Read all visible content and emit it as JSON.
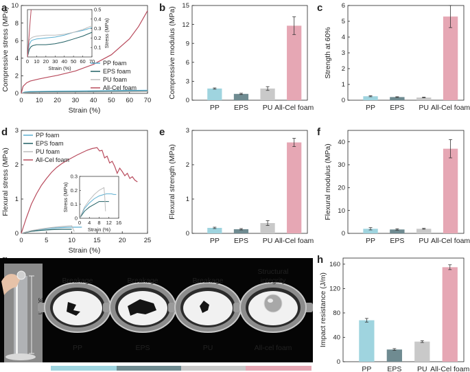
{
  "labels": {
    "a": "a",
    "b": "b",
    "c": "c",
    "d": "d",
    "e": "e",
    "f": "f",
    "g": "g",
    "h": "h"
  },
  "colors": {
    "PP": "#9fd4df",
    "EPS": "#6f8b91",
    "PU": "#c9c9c9",
    "Cel": "#e6a7b4",
    "PP_line": "#5aaed0",
    "EPS_line": "#1f5f63",
    "PU_line": "#bcbcbc",
    "Cel_line": "#b84a5c"
  },
  "chart_data": [
    {
      "id": "a",
      "type": "line",
      "xlabel": "Strain (%)",
      "ylabel": "Compressive stress (MPa)",
      "xlim": [
        0,
        70
      ],
      "ylim": [
        0,
        10
      ],
      "xticks": [
        0,
        10,
        20,
        30,
        40,
        50,
        60,
        70
      ],
      "yticks": [
        0,
        2,
        4,
        6,
        8,
        10
      ],
      "legend": [
        "PP foam",
        "EPS foam",
        "PU foam",
        "All-Cel foam"
      ],
      "series": [
        {
          "name": "PP foam",
          "x": [
            0,
            2,
            5,
            10,
            20,
            40,
            70
          ],
          "y": [
            0,
            0.15,
            0.2,
            0.22,
            0.24,
            0.28,
            0.35
          ]
        },
        {
          "name": "EPS foam",
          "x": [
            0,
            2,
            5,
            10,
            20,
            40,
            70
          ],
          "y": [
            0,
            0.1,
            0.13,
            0.15,
            0.17,
            0.2,
            0.25
          ]
        },
        {
          "name": "PU foam",
          "x": [
            0,
            2,
            5,
            10,
            20,
            40,
            70
          ],
          "y": [
            0,
            0.05,
            0.08,
            0.1,
            0.12,
            0.15,
            0.2
          ]
        },
        {
          "name": "All-Cel foam",
          "x": [
            0,
            1,
            3,
            5,
            8,
            10,
            15,
            20,
            30,
            40,
            50,
            60,
            65,
            70
          ],
          "y": [
            0,
            0.8,
            1.2,
            1.4,
            1.55,
            1.65,
            1.85,
            2.05,
            2.55,
            3.3,
            4.4,
            6.2,
            7.6,
            9.4
          ]
        }
      ],
      "inset": {
        "xlabel": "Strain (%)",
        "ylabel": "Stress (MPa)",
        "xlim": [
          0,
          70
        ],
        "ylim": [
          0,
          0.5
        ],
        "xticks": [
          0,
          10,
          20,
          30,
          40,
          50,
          60,
          70
        ],
        "yticks": [
          0.1,
          0.2,
          0.3,
          0.4,
          0.5
        ],
        "series": [
          {
            "name": "PP foam",
            "x": [
              0,
              2,
              4,
              6,
              10,
              20,
              30,
              40,
              50,
              60,
              70
            ],
            "y": [
              0,
              0.13,
              0.17,
              0.18,
              0.19,
              0.2,
              0.21,
              0.23,
              0.26,
              0.28,
              0.31
            ]
          },
          {
            "name": "EPS foam",
            "x": [
              0,
              2,
              4,
              6,
              10,
              20,
              30,
              40,
              50,
              60,
              70
            ],
            "y": [
              0,
              0.08,
              0.11,
              0.12,
              0.13,
              0.13,
              0.14,
              0.16,
              0.19,
              0.22,
              0.26
            ]
          },
          {
            "name": "PU foam",
            "x": [
              0,
              2,
              4,
              6,
              10,
              20,
              30,
              40,
              50,
              60,
              70
            ],
            "y": [
              0,
              0.18,
              0.2,
              0.21,
              0.22,
              0.23,
              0.23,
              0.24,
              0.26,
              0.29,
              0.33
            ]
          },
          {
            "name": "All-Cel foam",
            "x": [
              0,
              1,
              2,
              3,
              4
            ],
            "y": [
              0,
              0.12,
              0.25,
              0.38,
              0.5
            ]
          }
        ]
      }
    },
    {
      "id": "b",
      "type": "bar",
      "categories": [
        "PP",
        "EPS",
        "PU",
        "All-Cel foam"
      ],
      "values": [
        1.85,
        1.0,
        1.85,
        11.8
      ],
      "errors": [
        0.1,
        0.1,
        0.3,
        1.4
      ],
      "ylabel": "Compressive modulus (MPa)",
      "ylim": [
        0,
        15
      ],
      "yticks": [
        0,
        3,
        6,
        9,
        12,
        15
      ]
    },
    {
      "id": "c",
      "type": "bar",
      "categories": [
        "PP",
        "EPS",
        "PU",
        "All-Cel foam"
      ],
      "values": [
        0.25,
        0.2,
        0.17,
        5.3
      ],
      "errors": [
        0.03,
        0.02,
        0.02,
        0.7
      ],
      "ylabel": "Strength at 60%",
      "ylim": [
        0,
        6
      ],
      "yticks": [
        0,
        1,
        2,
        3,
        4,
        5,
        6
      ]
    },
    {
      "id": "d",
      "type": "line",
      "xlabel": "Strain (%)",
      "ylabel": "Flexural stress (MPa)",
      "xlim": [
        0,
        25
      ],
      "ylim": [
        0,
        3
      ],
      "xticks": [
        0,
        5,
        10,
        15,
        20,
        25
      ],
      "yticks": [
        0,
        1,
        2,
        3
      ],
      "legend": [
        "PP foam",
        "EPS foam",
        "PU foam",
        "All-Cel foam"
      ],
      "series": [
        {
          "name": "PP foam",
          "x": [
            0,
            2,
            4,
            6,
            8,
            10,
            12
          ],
          "y": [
            0,
            0.08,
            0.12,
            0.15,
            0.17,
            0.18,
            0.18
          ]
        },
        {
          "name": "EPS foam",
          "x": [
            0,
            2,
            4,
            6,
            8,
            10
          ],
          "y": [
            0,
            0.06,
            0.09,
            0.11,
            0.12,
            0.12
          ]
        },
        {
          "name": "PU foam",
          "x": [
            0,
            2,
            4,
            6,
            8,
            10,
            10.5
          ],
          "y": [
            0,
            0.08,
            0.13,
            0.17,
            0.2,
            0.22,
            0.05
          ]
        },
        {
          "name": "All-Cel foam",
          "x": [
            0,
            1,
            2,
            3,
            4,
            5,
            6,
            7,
            8,
            9,
            10,
            11,
            12,
            13,
            14,
            15,
            15.5,
            16,
            16.5,
            17,
            17.5,
            18,
            18.5,
            19,
            19.5,
            20,
            20.5,
            21,
            21.5,
            22,
            22.5,
            23
          ],
          "y": [
            0,
            0.45,
            0.85,
            1.15,
            1.4,
            1.6,
            1.78,
            1.92,
            2.03,
            2.12,
            2.2,
            2.28,
            2.35,
            2.42,
            2.47,
            2.5,
            2.4,
            2.42,
            2.2,
            2.25,
            2.05,
            2.1,
            1.95,
            1.75,
            1.9,
            1.8,
            1.68,
            1.75,
            1.6,
            1.65,
            1.55,
            1.5
          ]
        }
      ],
      "inset": {
        "xlabel": "Strain (%)",
        "ylabel": "Stress (MPa)",
        "xlim": [
          0,
          16
        ],
        "ylim": [
          0,
          0.3
        ],
        "xticks": [
          0,
          4,
          8,
          12,
          16
        ],
        "yticks": [
          0,
          0.1,
          0.2,
          0.3
        ],
        "series": [
          {
            "name": "PP foam",
            "x": [
              0,
              2,
              4,
              6,
              8,
              9,
              10,
              11,
              12,
              13,
              14,
              15
            ],
            "y": [
              0,
              0.07,
              0.11,
              0.14,
              0.16,
              0.165,
              0.17,
              0.175,
              0.175,
              0.175,
              0.17,
              0.17
            ]
          },
          {
            "name": "EPS foam",
            "x": [
              0,
              2,
              4,
              6,
              8,
              9,
              10,
              11,
              12
            ],
            "y": [
              0,
              0.05,
              0.08,
              0.1,
              0.12,
              0.12,
              0.12,
              0.12,
              0.12
            ]
          },
          {
            "name": "PU foam",
            "x": [
              0,
              2,
              4,
              6,
              8,
              9,
              10,
              10.3,
              10.6
            ],
            "y": [
              0,
              0.08,
              0.13,
              0.17,
              0.2,
              0.21,
              0.22,
              0.15,
              0.05
            ]
          }
        ]
      }
    },
    {
      "id": "e",
      "type": "bar",
      "categories": [
        "PP",
        "EPS",
        "PU",
        "All-Cel foam"
      ],
      "values": [
        0.16,
        0.12,
        0.3,
        2.65
      ],
      "errors": [
        0.02,
        0.02,
        0.07,
        0.12
      ],
      "ylabel": "Flexural strength (MPa)",
      "ylim": [
        0,
        3
      ],
      "yticks": [
        0,
        1,
        2,
        3
      ]
    },
    {
      "id": "f",
      "type": "bar",
      "categories": [
        "PP",
        "EPS",
        "PU",
        "All-Cel foam"
      ],
      "values": [
        2.0,
        1.7,
        2.0,
        37.0
      ],
      "errors": [
        0.5,
        0.3,
        0.2,
        4.0
      ],
      "ylabel": "Flexural modulus (MPa)",
      "ylim": [
        0,
        45
      ],
      "yticks": [
        0,
        10,
        20,
        30,
        40
      ]
    },
    {
      "id": "h",
      "type": "bar",
      "categories": [
        "PP",
        "EPS",
        "PU",
        "All-Cel foam"
      ],
      "values": [
        68,
        20,
        33,
        155
      ],
      "errors": [
        3,
        1.5,
        1.5,
        4
      ],
      "ylabel": "Impact resistance (J/m)",
      "ylim": [
        0,
        170
      ],
      "yticks": [
        0,
        40,
        80,
        120,
        160
      ]
    }
  ],
  "photo": {
    "height_label": "30 cm",
    "panels": [
      {
        "top": "Breakage",
        "top2": "",
        "bottom": "PP"
      },
      {
        "top": "Breakage",
        "top2": "",
        "bottom": "EPS"
      },
      {
        "top": "Breakage",
        "top2": "",
        "bottom": "PU"
      },
      {
        "top": "Structural",
        "top2": "integrity",
        "bottom": "All-cel foam"
      }
    ]
  }
}
